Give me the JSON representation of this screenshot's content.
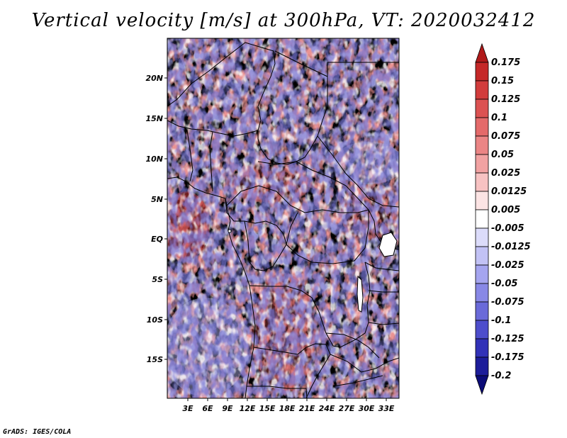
{
  "title": "Vertical velocity [m/s] at 300hPa, VT: 2020032412",
  "credit": "GrADS: IGES/COLA",
  "axes": {
    "y_ticks": [
      "20N",
      "15N",
      "10N",
      "5N",
      "EQ",
      "5S",
      "10S",
      "15S"
    ],
    "x_ticks": [
      "3E",
      "6E",
      "9E",
      "12E",
      "15E",
      "18E",
      "21E",
      "24E",
      "27E",
      "30E",
      "33E"
    ]
  },
  "colorbar": {
    "levels": [
      "0.175",
      "0.15",
      "0.125",
      "0.1",
      "0.075",
      "0.05",
      "0.025",
      "0.0125",
      "0.005",
      "-0.005",
      "-0.0125",
      "-0.025",
      "-0.05",
      "-0.075",
      "-0.1",
      "-0.125",
      "-0.175",
      "-0.2"
    ],
    "colors": [
      "#b01a1a",
      "#c52828",
      "#d23c3c",
      "#dc5252",
      "#e46a6a",
      "#eb8585",
      "#f1a2a2",
      "#f7c2c2",
      "#fce4e4",
      "#ffffff",
      "#dcdcfa",
      "#c2c2f5",
      "#a5a5ef",
      "#8888e6",
      "#6a6ad9",
      "#4e4ecc",
      "#3232b8",
      "#1d1d9a",
      "#0c0c78"
    ]
  },
  "map_colors": {
    "up": "#d24b4b",
    "down": "#6f6fe0",
    "neutral": "#c8c8f4",
    "border": "#000000"
  }
}
